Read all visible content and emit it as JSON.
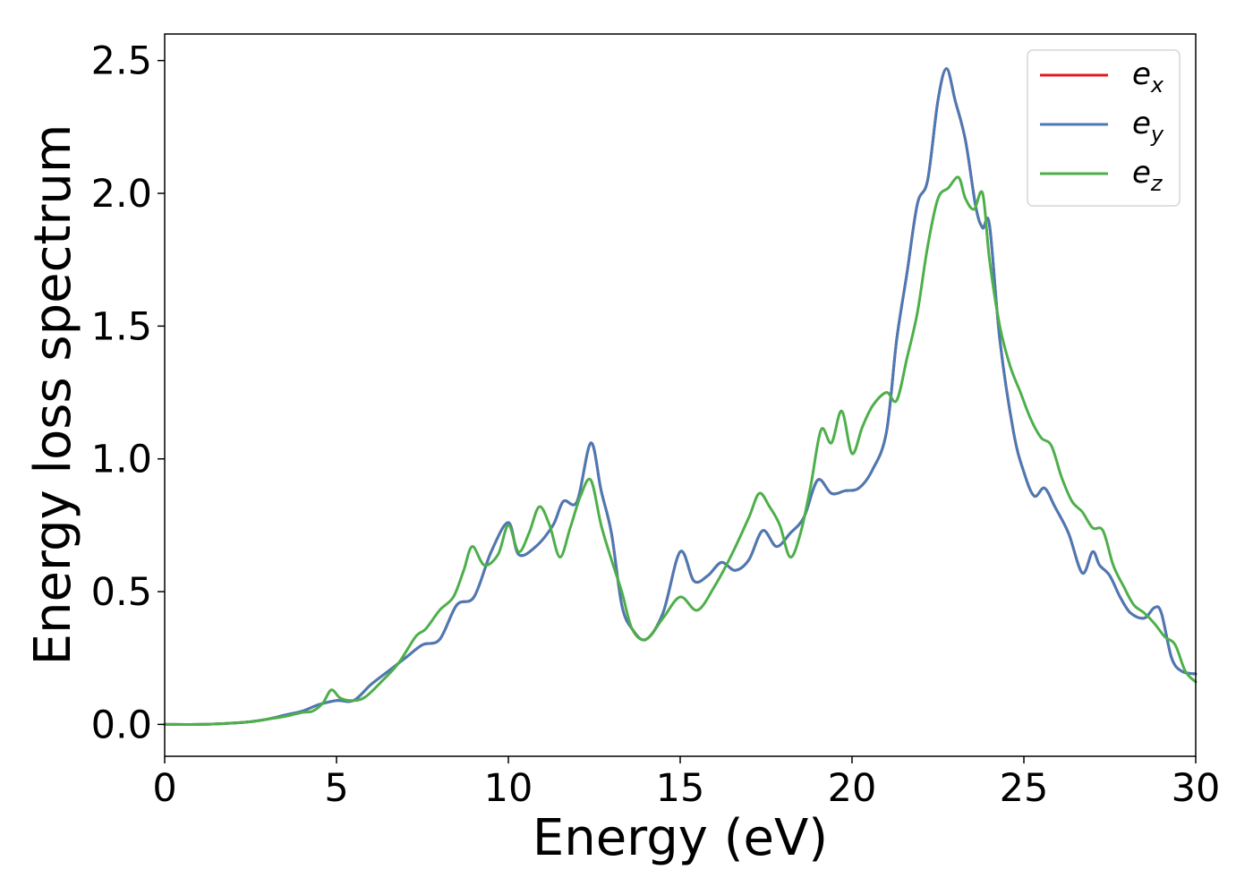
{
  "chart_data": {
    "type": "line",
    "xlabel": "Energy (eV)",
    "ylabel": "Energy loss spectrum",
    "xlim": [
      0,
      30
    ],
    "ylim": [
      -0.12,
      2.6
    ],
    "xticks": [
      0,
      5,
      10,
      15,
      20,
      25,
      30
    ],
    "xtick_labels": [
      "0",
      "5",
      "10",
      "15",
      "20",
      "25",
      "30"
    ],
    "yticks": [
      0.0,
      0.5,
      1.0,
      1.5,
      2.0,
      2.5
    ],
    "ytick_labels": [
      "0.0",
      "0.5",
      "1.0",
      "1.5",
      "2.0",
      "2.5"
    ],
    "grid": false,
    "legend_position": "top-right",
    "series": [
      {
        "name": "e_x",
        "label_base": "e",
        "label_sub": "x",
        "color": "#e41a1c",
        "x": [
          0,
          1,
          2,
          2.5,
          3,
          3.5,
          4,
          4.5,
          5,
          5.5,
          6,
          6.5,
          7,
          7.5,
          8,
          8.5,
          9,
          9.5,
          10,
          10.3,
          10.8,
          11.3,
          11.6,
          12,
          12.4,
          12.7,
          13,
          13.3,
          13.6,
          14,
          14.5,
          15,
          15.4,
          15.8,
          16.2,
          16.6,
          17,
          17.4,
          17.8,
          18.2,
          18.6,
          19,
          19.4,
          19.8,
          20.2,
          20.6,
          21,
          21.3,
          21.6,
          21.9,
          22.2,
          22.5,
          22.75,
          23,
          23.3,
          23.6,
          23.8,
          24,
          24.3,
          24.7,
          25,
          25.3,
          25.6,
          25.9,
          26.3,
          26.7,
          27,
          27.2,
          27.5,
          27.8,
          28.1,
          28.5,
          28.8,
          29,
          29.3,
          29.6,
          30
        ],
        "y": [
          0,
          0,
          0.005,
          0.01,
          0.02,
          0.035,
          0.05,
          0.075,
          0.09,
          0.09,
          0.15,
          0.2,
          0.25,
          0.3,
          0.32,
          0.45,
          0.48,
          0.65,
          0.76,
          0.64,
          0.67,
          0.75,
          0.84,
          0.84,
          1.06,
          0.88,
          0.72,
          0.45,
          0.36,
          0.32,
          0.42,
          0.65,
          0.54,
          0.56,
          0.61,
          0.58,
          0.62,
          0.73,
          0.67,
          0.72,
          0.78,
          0.92,
          0.87,
          0.88,
          0.89,
          0.96,
          1.1,
          1.45,
          1.7,
          1.96,
          2.05,
          2.35,
          2.47,
          2.35,
          2.2,
          1.95,
          1.87,
          1.88,
          1.45,
          1.1,
          0.95,
          0.86,
          0.89,
          0.82,
          0.72,
          0.57,
          0.65,
          0.6,
          0.56,
          0.48,
          0.42,
          0.4,
          0.44,
          0.42,
          0.25,
          0.2,
          0.19
        ]
      },
      {
        "name": "e_y",
        "label_base": "e",
        "label_sub": "y",
        "color": "#4a7ab5",
        "x": [
          0,
          1,
          2,
          2.5,
          3,
          3.5,
          4,
          4.5,
          5,
          5.5,
          6,
          6.5,
          7,
          7.5,
          8,
          8.5,
          9,
          9.5,
          10,
          10.3,
          10.8,
          11.3,
          11.6,
          12,
          12.4,
          12.7,
          13,
          13.3,
          13.6,
          14,
          14.5,
          15,
          15.4,
          15.8,
          16.2,
          16.6,
          17,
          17.4,
          17.8,
          18.2,
          18.6,
          19,
          19.4,
          19.8,
          20.2,
          20.6,
          21,
          21.3,
          21.6,
          21.9,
          22.2,
          22.5,
          22.75,
          23,
          23.3,
          23.6,
          23.8,
          24,
          24.3,
          24.7,
          25,
          25.3,
          25.6,
          25.9,
          26.3,
          26.7,
          27,
          27.2,
          27.5,
          27.8,
          28.1,
          28.5,
          28.8,
          29,
          29.3,
          29.6,
          30
        ],
        "y": [
          0,
          0,
          0.005,
          0.01,
          0.02,
          0.035,
          0.05,
          0.075,
          0.09,
          0.09,
          0.15,
          0.2,
          0.25,
          0.3,
          0.32,
          0.45,
          0.48,
          0.65,
          0.76,
          0.64,
          0.67,
          0.75,
          0.84,
          0.84,
          1.06,
          0.88,
          0.72,
          0.45,
          0.36,
          0.32,
          0.42,
          0.65,
          0.54,
          0.56,
          0.61,
          0.58,
          0.62,
          0.73,
          0.67,
          0.72,
          0.78,
          0.92,
          0.87,
          0.88,
          0.89,
          0.96,
          1.1,
          1.45,
          1.7,
          1.96,
          2.05,
          2.35,
          2.47,
          2.35,
          2.2,
          1.95,
          1.87,
          1.88,
          1.45,
          1.1,
          0.95,
          0.86,
          0.89,
          0.82,
          0.72,
          0.57,
          0.65,
          0.6,
          0.56,
          0.48,
          0.42,
          0.4,
          0.44,
          0.42,
          0.25,
          0.2,
          0.19
        ]
      },
      {
        "name": "e_z",
        "label_base": "e",
        "label_sub": "z",
        "color": "#4daf4a",
        "x": [
          0,
          1,
          2,
          2.5,
          3,
          3.5,
          4,
          4.3,
          4.6,
          4.85,
          5.1,
          5.4,
          5.8,
          6.3,
          6.8,
          7.3,
          7.6,
          8,
          8.4,
          8.7,
          8.95,
          9.3,
          9.7,
          10,
          10.3,
          10.6,
          10.9,
          11.2,
          11.5,
          11.8,
          12.1,
          12.4,
          12.7,
          13,
          13.3,
          13.6,
          14,
          14.5,
          15,
          15.5,
          16,
          16.5,
          17,
          17.3,
          17.6,
          17.9,
          18.2,
          18.5,
          18.8,
          19.1,
          19.4,
          19.7,
          20,
          20.3,
          20.6,
          21,
          21.3,
          21.6,
          21.9,
          22.2,
          22.5,
          22.8,
          23.1,
          23.3,
          23.55,
          23.8,
          24,
          24.3,
          24.6,
          24.9,
          25.2,
          25.5,
          25.8,
          26.1,
          26.4,
          26.7,
          27,
          27.3,
          27.6,
          27.9,
          28.2,
          28.5,
          28.8,
          29.1,
          29.4,
          29.7,
          30
        ],
        "y": [
          0,
          0,
          0.005,
          0.01,
          0.02,
          0.03,
          0.045,
          0.05,
          0.08,
          0.13,
          0.1,
          0.09,
          0.1,
          0.16,
          0.23,
          0.33,
          0.36,
          0.43,
          0.48,
          0.58,
          0.67,
          0.6,
          0.64,
          0.75,
          0.65,
          0.72,
          0.82,
          0.75,
          0.63,
          0.74,
          0.86,
          0.92,
          0.75,
          0.62,
          0.5,
          0.36,
          0.32,
          0.4,
          0.48,
          0.43,
          0.52,
          0.64,
          0.78,
          0.87,
          0.82,
          0.75,
          0.63,
          0.72,
          0.9,
          1.11,
          1.06,
          1.18,
          1.02,
          1.12,
          1.2,
          1.25,
          1.22,
          1.38,
          1.55,
          1.8,
          1.98,
          2.02,
          2.06,
          1.98,
          1.94,
          2.0,
          1.75,
          1.5,
          1.35,
          1.25,
          1.15,
          1.08,
          1.05,
          0.93,
          0.84,
          0.8,
          0.74,
          0.73,
          0.6,
          0.52,
          0.45,
          0.42,
          0.38,
          0.33,
          0.3,
          0.2,
          0.16
        ]
      }
    ]
  }
}
